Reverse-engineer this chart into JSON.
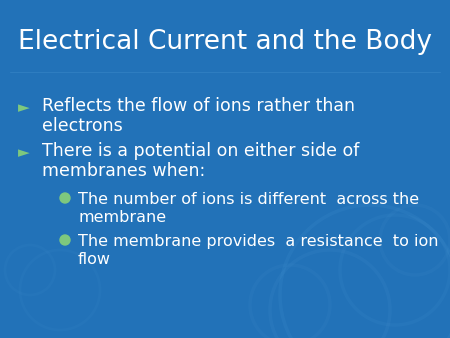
{
  "title": "Electrical Current and the Body",
  "title_color": "#FFFFFF",
  "title_fontsize": 19,
  "bg_color": "#2272B8",
  "bullet1_line1": "Reflects the flow of ions rather than",
  "bullet1_line2": "electrons",
  "bullet2_line1": "There is a potential on either side of",
  "bullet2_line2": "membranes when:",
  "sub1_line1": "The number of ions is different  across the",
  "sub1_line2": "membrane",
  "sub2_line1": "The membrane provides  a resistance  to ion",
  "sub2_line2": "flow",
  "text_color": "#FFFFFF",
  "arrow_color": "#7EC87E",
  "circle_color": "#7EC87E",
  "text_fontsize": 12.5,
  "sub_text_fontsize": 11.5,
  "arrow_fontsize": 11
}
